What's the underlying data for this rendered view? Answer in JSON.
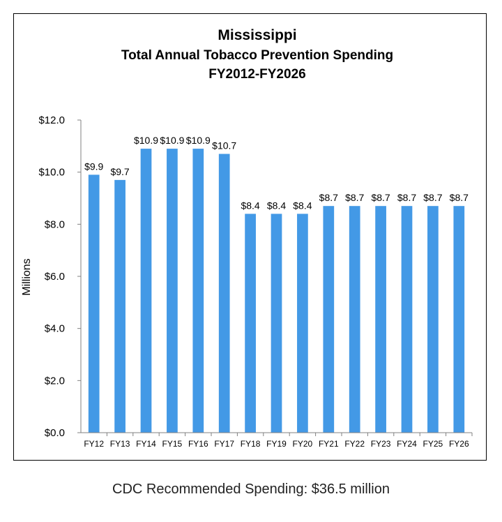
{
  "chart_data": {
    "type": "bar",
    "title": "Mississippi",
    "subtitle_lines": [
      "Total Annual Tobacco Prevention Spending",
      "FY2012-FY2026"
    ],
    "xlabel": "",
    "ylabel": "Millions",
    "ylim": [
      0,
      12
    ],
    "y_ticks": [
      0,
      2,
      4,
      6,
      8,
      10,
      12
    ],
    "y_tick_labels": [
      "$0.0",
      "$2.0",
      "$4.0",
      "$6.0",
      "$8.0",
      "$10.0",
      "$12.0"
    ],
    "grid": false,
    "bar_color": "#4399E6",
    "categories": [
      "FY12",
      "FY13",
      "FY14",
      "FY15",
      "FY16",
      "FY17",
      "FY18",
      "FY19",
      "FY20",
      "FY21",
      "FY22",
      "FY23",
      "FY24",
      "FY25",
      "FY26"
    ],
    "values": [
      9.9,
      9.7,
      10.9,
      10.9,
      10.9,
      10.7,
      8.4,
      8.4,
      8.4,
      8.7,
      8.7,
      8.7,
      8.7,
      8.7,
      8.7
    ],
    "data_labels": [
      "$9.9",
      "$9.7",
      "$10.9",
      "$10.9",
      "$10.9",
      "$10.7",
      "$8.4",
      "$8.4",
      "$8.4",
      "$8.7",
      "$8.7",
      "$8.7",
      "$8.7",
      "$8.7",
      "$8.7"
    ]
  },
  "footnote": "CDC Recommended Spending: $36.5 million"
}
